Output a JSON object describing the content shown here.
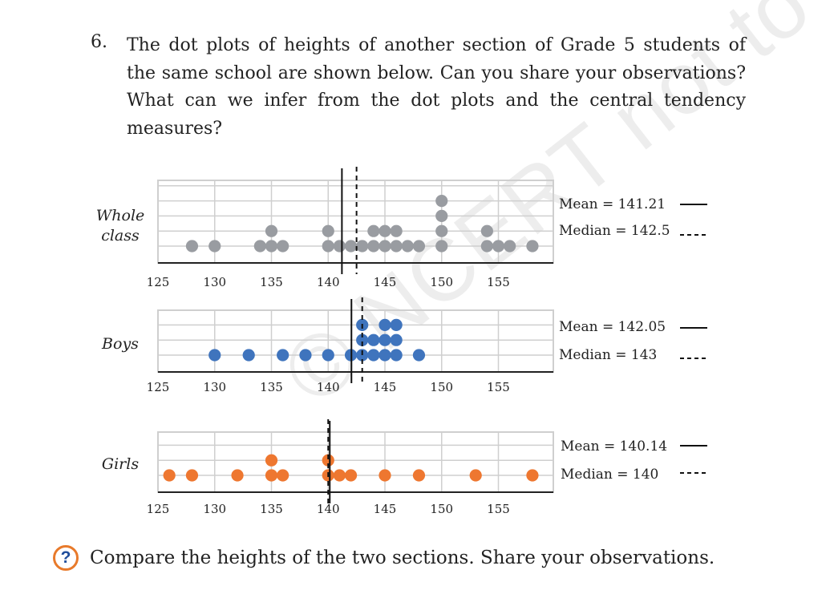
{
  "question": {
    "number": "6.",
    "text": "The dot plots of heights of another section of Grade 5 students of the same school are shown below. Can you share your observations? What can we infer from the dot plots and the central tendency measures?"
  },
  "watermark": "© NCERT not to be republished",
  "footer": {
    "icon": "question-circle-icon",
    "text": "Compare the heights of the two sections. Share your observations."
  },
  "colors": {
    "whole": "#999ca1",
    "boys": "#3f74bd",
    "girls": "#ee7730",
    "grid": "#cfcfcf",
    "axis": "#222222"
  },
  "chart_data": [
    {
      "type": "scatter",
      "label": "Whole class",
      "xlim": [
        125,
        160
      ],
      "ticks": [
        "125",
        "130",
        "135",
        "140",
        "145",
        "150",
        "155"
      ],
      "points": [
        [
          128,
          1
        ],
        [
          130,
          1
        ],
        [
          134,
          1
        ],
        [
          135,
          1
        ],
        [
          135,
          2
        ],
        [
          136,
          1
        ],
        [
          140,
          1
        ],
        [
          140,
          2
        ],
        [
          141,
          1
        ],
        [
          142,
          1
        ],
        [
          143,
          1
        ],
        [
          144,
          1
        ],
        [
          144,
          2
        ],
        [
          145,
          1
        ],
        [
          145,
          2
        ],
        [
          146,
          1
        ],
        [
          146,
          2
        ],
        [
          147,
          1
        ],
        [
          148,
          1
        ],
        [
          150,
          1
        ],
        [
          150,
          2
        ],
        [
          150,
          3
        ],
        [
          150,
          4
        ],
        [
          154,
          1
        ],
        [
          154,
          2
        ],
        [
          155,
          1
        ],
        [
          156,
          1
        ],
        [
          158,
          1
        ]
      ],
      "mean": 141.21,
      "median": 142.5,
      "mean_label": "Mean = 141.21",
      "median_label": "Median = 142.5"
    },
    {
      "type": "scatter",
      "label": "Boys",
      "xlim": [
        125,
        160
      ],
      "ticks": [
        "125",
        "130",
        "135",
        "140",
        "145",
        "150",
        "155"
      ],
      "points": [
        [
          130,
          1
        ],
        [
          133,
          1
        ],
        [
          136,
          1
        ],
        [
          138,
          1
        ],
        [
          140,
          1
        ],
        [
          142,
          1
        ],
        [
          143,
          1
        ],
        [
          143,
          2
        ],
        [
          143,
          3
        ],
        [
          144,
          1
        ],
        [
          144,
          2
        ],
        [
          145,
          1
        ],
        [
          145,
          2
        ],
        [
          145,
          3
        ],
        [
          146,
          1
        ],
        [
          146,
          2
        ],
        [
          146,
          3
        ],
        [
          148,
          1
        ]
      ],
      "mean": 142.05,
      "median": 143,
      "mean_label": "Mean = 142.05",
      "median_label": "Median = 143"
    },
    {
      "type": "scatter",
      "label": "Girls",
      "xlim": [
        125,
        160
      ],
      "ticks": [
        "125",
        "130",
        "135",
        "140",
        "145",
        "150",
        "155"
      ],
      "points": [
        [
          126,
          1
        ],
        [
          128,
          1
        ],
        [
          132,
          1
        ],
        [
          135,
          1
        ],
        [
          135,
          2
        ],
        [
          136,
          1
        ],
        [
          140,
          1
        ],
        [
          140,
          2
        ],
        [
          141,
          1
        ],
        [
          142,
          1
        ],
        [
          145,
          1
        ],
        [
          148,
          1
        ],
        [
          153,
          1
        ],
        [
          158,
          1
        ]
      ],
      "mean": 140.14,
      "median": 140,
      "mean_label": "Mean = 140.14",
      "median_label": "Median = 140"
    }
  ]
}
